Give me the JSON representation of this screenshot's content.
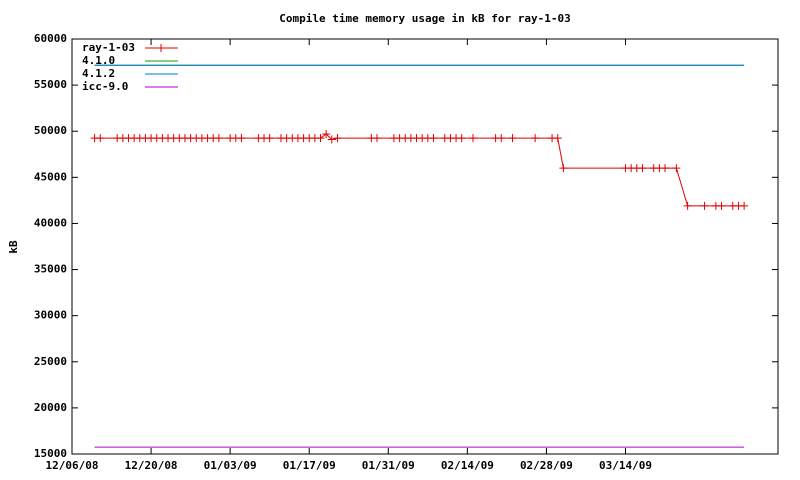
{
  "chart_data": {
    "type": "line",
    "title": "Compile time memory usage in kB for ray-1-03",
    "y_label": "kB",
    "xlim": [
      "12/06/08",
      "04/10/09"
    ],
    "xticks": [
      "12/06/08",
      "12/20/08",
      "01/03/09",
      "01/17/09",
      "01/31/09",
      "02/14/09",
      "02/28/09",
      "03/14/09"
    ],
    "ylim": [
      15000,
      60000
    ],
    "yticks": [
      15000,
      20000,
      25000,
      30000,
      35000,
      40000,
      45000,
      50000,
      55000,
      60000
    ],
    "grid": false,
    "legend": "top-left",
    "series": [
      {
        "name": "ray-1-03",
        "color": "#e00000",
        "marker": "plus",
        "x": [
          "12/10/08",
          "12/11/08",
          "12/14/08",
          "12/15/08",
          "12/16/08",
          "12/17/08",
          "12/18/08",
          "12/19/08",
          "12/20/08",
          "12/21/08",
          "12/22/08",
          "12/23/08",
          "12/24/08",
          "12/25/08",
          "12/26/08",
          "12/27/08",
          "12/28/08",
          "12/29/08",
          "12/30/08",
          "12/31/08",
          "01/01/09",
          "01/03/09",
          "01/04/09",
          "01/05/09",
          "01/08/09",
          "01/09/09",
          "01/10/09",
          "01/12/09",
          "01/13/09",
          "01/14/09",
          "01/15/09",
          "01/16/09",
          "01/17/09",
          "01/18/09",
          "01/19/09",
          "01/20/09",
          "01/21/09",
          "01/22/09",
          "01/28/09",
          "01/29/09",
          "02/01/09",
          "02/02/09",
          "02/03/09",
          "02/04/09",
          "02/05/09",
          "02/06/09",
          "02/07/09",
          "02/08/09",
          "02/10/09",
          "02/11/09",
          "02/12/09",
          "02/13/09",
          "02/15/09",
          "02/19/09",
          "02/20/09",
          "02/22/09",
          "02/26/09",
          "03/01/09",
          "03/02/09",
          "03/03/09",
          "03/14/09",
          "03/15/09",
          "03/16/09",
          "03/17/09",
          "03/19/09",
          "03/20/09",
          "03/21/09",
          "03/23/09",
          "03/25/09",
          "03/28/09",
          "03/30/09",
          "03/31/09",
          "04/02/09",
          "04/03/09",
          "04/04/09"
        ],
        "values": [
          49250,
          49250,
          49250,
          49250,
          49250,
          49250,
          49250,
          49250,
          49250,
          49250,
          49250,
          49250,
          49250,
          49250,
          49250,
          49250,
          49250,
          49250,
          49250,
          49250,
          49250,
          49250,
          49250,
          49250,
          49250,
          49250,
          49250,
          49250,
          49250,
          49250,
          49250,
          49250,
          49250,
          49250,
          49250,
          49700,
          49100,
          49250,
          49250,
          49250,
          49250,
          49250,
          49250,
          49250,
          49250,
          49250,
          49250,
          49250,
          49250,
          49250,
          49250,
          49250,
          49250,
          49250,
          49250,
          49250,
          49250,
          49250,
          49250,
          46000,
          46000,
          46000,
          46000,
          46000,
          46000,
          46000,
          46000,
          46000,
          41900,
          41900,
          41900,
          41900,
          41900,
          41900,
          41900
        ]
      },
      {
        "name": "4.1.0",
        "color": "#00a000",
        "marker": "none",
        "x": [
          "12/10/08",
          "04/04/09"
        ],
        "values": [
          57150,
          57150
        ]
      },
      {
        "name": "4.1.2",
        "color": "#0070e0",
        "marker": "none",
        "x": [
          "12/10/08",
          "04/04/09"
        ],
        "values": [
          57150,
          57150
        ]
      },
      {
        "name": "icc-9.0",
        "color": "#b000d0",
        "marker": "none",
        "x": [
          "12/10/08",
          "04/04/09"
        ],
        "values": [
          15750,
          15750
        ]
      }
    ]
  }
}
